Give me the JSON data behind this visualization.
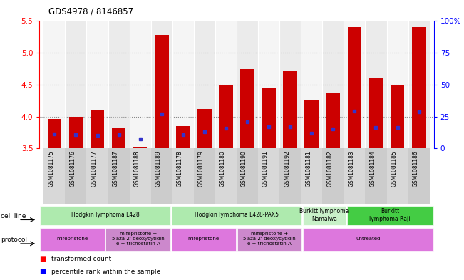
{
  "title": "GDS4978 / 8146857",
  "samples": [
    "GSM1081175",
    "GSM1081176",
    "GSM1081177",
    "GSM1081187",
    "GSM1081188",
    "GSM1081189",
    "GSM1081178",
    "GSM1081179",
    "GSM1081180",
    "GSM1081190",
    "GSM1081191",
    "GSM1081192",
    "GSM1081181",
    "GSM1081182",
    "GSM1081183",
    "GSM1081184",
    "GSM1081185",
    "GSM1081186"
  ],
  "red_values": [
    3.96,
    4.0,
    4.1,
    3.82,
    3.52,
    5.28,
    3.85,
    4.12,
    4.5,
    4.75,
    4.45,
    4.72,
    4.26,
    4.36,
    5.4,
    4.6,
    4.5,
    5.4
  ],
  "blue_values": [
    3.73,
    3.72,
    3.71,
    3.72,
    3.65,
    4.04,
    3.72,
    3.76,
    3.82,
    3.92,
    3.84,
    3.84,
    3.74,
    3.8,
    4.08,
    3.83,
    3.83,
    4.07
  ],
  "ymin": 3.5,
  "ymax": 5.5,
  "yticks_left": [
    3.5,
    4.0,
    4.5,
    5.0,
    5.5
  ],
  "ytick_labels_right": [
    "0",
    "25",
    "50",
    "75",
    "100%"
  ],
  "dotted_lines": [
    4.0,
    4.5,
    5.0
  ],
  "bar_color": "#cc0000",
  "blue_color": "#3333cc",
  "chart_bg": "#ffffff",
  "col_bg": "#d8d8d8",
  "cell_groups": [
    {
      "label": "Hodgkin lymphoma L428",
      "start": 0,
      "end": 6,
      "color": "#aeeaae"
    },
    {
      "label": "Hodgkin lymphoma L428-PAX5",
      "start": 6,
      "end": 12,
      "color": "#aeeaae"
    },
    {
      "label": "Burkitt lymphoma\nNamalwa",
      "start": 12,
      "end": 14,
      "color": "#c8f0c8"
    },
    {
      "label": "Burkitt\nlymphoma Raji",
      "start": 14,
      "end": 18,
      "color": "#44cc44"
    }
  ],
  "protocol_groups": [
    {
      "label": "mifepristone",
      "start": 0,
      "end": 3,
      "color": "#dd77dd"
    },
    {
      "label": "mifepristone +\n5-aza-2'-deoxycytidin\ne + trichostatin A",
      "start": 3,
      "end": 6,
      "color": "#cc88cc"
    },
    {
      "label": "mifepristone",
      "start": 6,
      "end": 9,
      "color": "#dd77dd"
    },
    {
      "label": "mifepristone +\n5-aza-2'-deoxycytidin\ne + trichostatin A",
      "start": 9,
      "end": 12,
      "color": "#cc88cc"
    },
    {
      "label": "untreated",
      "start": 12,
      "end": 18,
      "color": "#dd77dd"
    }
  ]
}
